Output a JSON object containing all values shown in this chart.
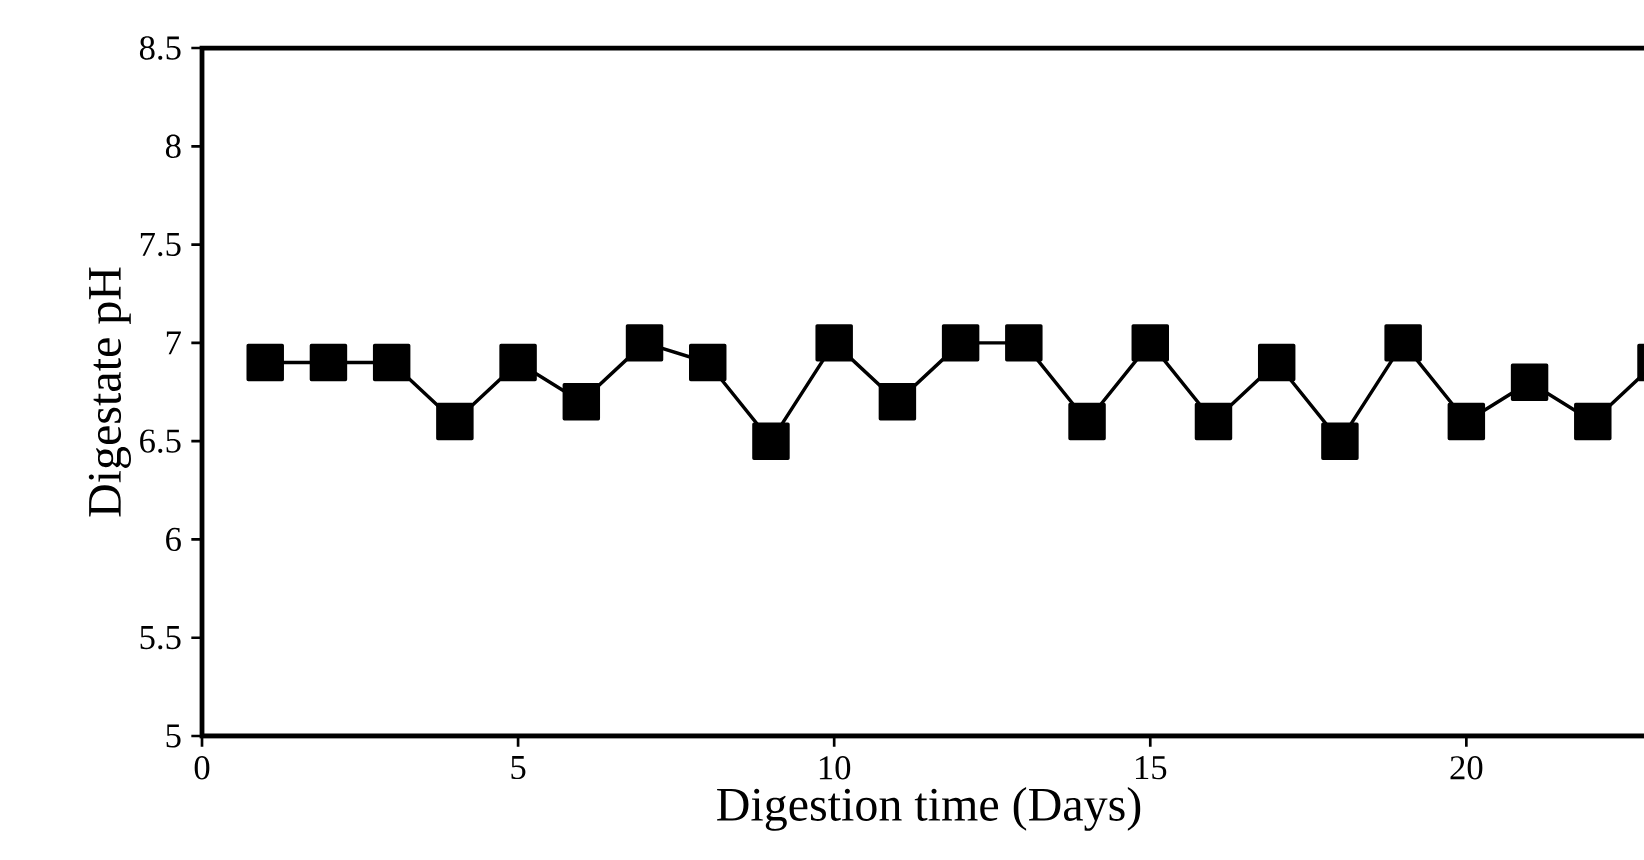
{
  "chart_data": {
    "type": "line",
    "xlabel": "Digestion time (Days)",
    "ylabel": "Digestate pH",
    "x": [
      1,
      2,
      3,
      4,
      5,
      6,
      7,
      8,
      9,
      10,
      11,
      12,
      13,
      14,
      15,
      16,
      17,
      18,
      19,
      20,
      21,
      22,
      23
    ],
    "series": [
      {
        "color": "#000000",
        "values": [
          6.9,
          6.9,
          6.9,
          6.6,
          6.9,
          6.7,
          7.0,
          6.9,
          6.5,
          7.0,
          6.7,
          7.0,
          7.0,
          6.6,
          7.0,
          6.6,
          6.9,
          6.5,
          7.0,
          6.6,
          6.8,
          6.6,
          6.9
        ]
      }
    ],
    "xlim": [
      0,
      23
    ],
    "xticks": [
      0,
      5,
      10,
      15,
      20
    ],
    "ylim": [
      5,
      8.5
    ],
    "yticks": [
      5,
      5.5,
      6,
      6.5,
      7,
      7.5,
      8,
      8.5
    ],
    "grid": false,
    "marker": "square",
    "line_style": "solid"
  }
}
